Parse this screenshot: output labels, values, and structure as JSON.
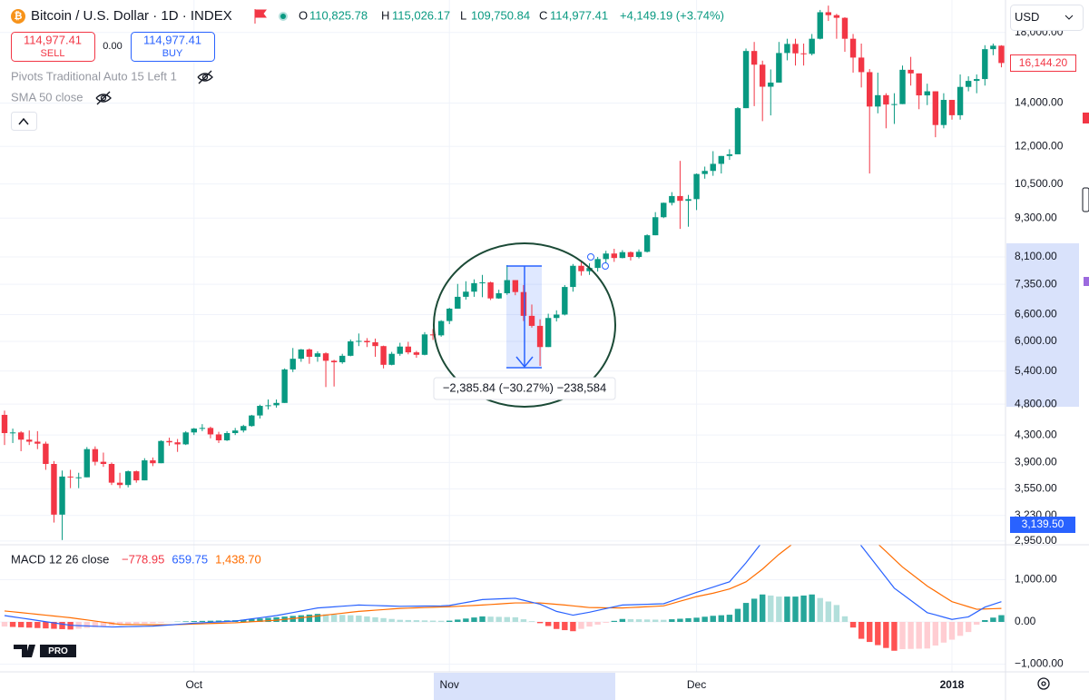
{
  "ui": {
    "symbol": "Bitcoin / U.S. Dollar · 1D · INDEX",
    "ohlc_legend": [
      {
        "label": "O",
        "value": "110,825.78"
      },
      {
        "label": "H",
        "value": "115,026.17"
      },
      {
        "label": "L",
        "value": "109,750.84"
      },
      {
        "label": "C",
        "value": "114,977.41"
      }
    ],
    "change": "+4,149.19 (+3.74%)",
    "sell": {
      "price": "114,977.41",
      "label": "SELL"
    },
    "spread": "0.00",
    "buy": {
      "price": "114,977.41",
      "label": "BUY"
    },
    "indicators": [
      "Pivots Traditional Auto 15 Left 1",
      "SMA 50 close"
    ],
    "currency": "USD",
    "last_price": "16,144.20",
    "crosshair_price": "3,139.50",
    "measure": "−2,385.84 (−30.27%) −238,584",
    "logo": "PRO"
  },
  "chart_data": {
    "type": "candlestick",
    "log_scale": true,
    "grid": true,
    "up_color": "#089981",
    "down_color": "#f23645",
    "xlim": [
      -0.55,
      121.5
    ],
    "xticks": [
      {
        "value": 23,
        "label": "Oct"
      },
      {
        "value": 54,
        "label": "Nov"
      },
      {
        "value": 84,
        "label": "Dec"
      },
      {
        "value": 115,
        "label": "2018"
      }
    ],
    "ylim": [
      2911,
      20200
    ],
    "yticks": [
      {
        "value": 18000,
        "label": "18,000.00"
      },
      {
        "value": 14000,
        "label": "14,000.00"
      },
      {
        "value": 12000,
        "label": "12,000.00"
      },
      {
        "value": 10500,
        "label": "10,500.00"
      },
      {
        "value": 9300,
        "label": "9,300.00"
      },
      {
        "value": 8100,
        "label": "8,100.00"
      },
      {
        "value": 7350,
        "label": "7,350.00"
      },
      {
        "value": 6600,
        "label": "6,600.00"
      },
      {
        "value": 6000,
        "label": "6,000.00"
      },
      {
        "value": 5400,
        "label": "5,400.00"
      },
      {
        "value": 4800,
        "label": "4,800.00"
      },
      {
        "value": 4300,
        "label": "4,300.00"
      },
      {
        "value": 3900,
        "label": "3,900.00"
      },
      {
        "value": 3550,
        "label": "3,550.00"
      },
      {
        "value": 3230,
        "label": "3,230.00"
      },
      {
        "value": 2950,
        "label": "2,950.00"
      }
    ],
    "ohlc": [
      [
        4620,
        4690,
        4150,
        4330
      ],
      [
        4330,
        4400,
        4180,
        4340
      ],
      [
        4340,
        4360,
        4060,
        4230
      ],
      [
        4230,
        4370,
        4150,
        4200
      ],
      [
        4200,
        4360,
        4090,
        4170
      ],
      [
        4170,
        4200,
        3800,
        3880
      ],
      [
        3880,
        3920,
        3150,
        3240
      ],
      [
        3240,
        3790,
        2960,
        3710
      ],
      [
        3710,
        3800,
        3560,
        3700
      ],
      [
        3700,
        3760,
        3560,
        3700
      ],
      [
        3700,
        4120,
        3700,
        4090
      ],
      [
        4090,
        4130,
        3860,
        3910
      ],
      [
        3910,
        4040,
        3840,
        3880
      ],
      [
        3880,
        3900,
        3600,
        3630
      ],
      [
        3630,
        3760,
        3560,
        3600
      ],
      [
        3600,
        3790,
        3570,
        3780
      ],
      [
        3780,
        3790,
        3630,
        3660
      ],
      [
        3660,
        3960,
        3660,
        3930
      ],
      [
        3930,
        3970,
        3850,
        3890
      ],
      [
        3890,
        4220,
        3890,
        4210
      ],
      [
        4210,
        4260,
        4140,
        4190
      ],
      [
        4190,
        4240,
        4050,
        4160
      ],
      [
        4160,
        4360,
        4150,
        4340
      ],
      [
        4340,
        4410,
        4300,
        4400
      ],
      [
        4400,
        4470,
        4360,
        4410
      ],
      [
        4410,
        4430,
        4250,
        4310
      ],
      [
        4310,
        4350,
        4180,
        4220
      ],
      [
        4220,
        4360,
        4210,
        4330
      ],
      [
        4330,
        4410,
        4300,
        4370
      ],
      [
        4370,
        4460,
        4340,
        4440
      ],
      [
        4440,
        4620,
        4430,
        4610
      ],
      [
        4610,
        4790,
        4560,
        4770
      ],
      [
        4770,
        4880,
        4710,
        4780
      ],
      [
        4780,
        4880,
        4740,
        4820
      ],
      [
        4820,
        5450,
        4820,
        5430
      ],
      [
        5430,
        5860,
        5380,
        5640
      ],
      [
        5640,
        5840,
        5580,
        5830
      ],
      [
        5830,
        5850,
        5540,
        5680
      ],
      [
        5680,
        5790,
        5580,
        5750
      ],
      [
        5750,
        5770,
        5100,
        5600
      ],
      [
        5600,
        5620,
        5110,
        5570
      ],
      [
        5570,
        5740,
        5540,
        5700
      ],
      [
        5700,
        6040,
        5690,
        6000
      ],
      [
        6000,
        6170,
        5900,
        6010
      ],
      [
        6010,
        6070,
        5880,
        5980
      ],
      [
        5980,
        6060,
        5680,
        5900
      ],
      [
        5900,
        5910,
        5450,
        5520
      ],
      [
        5520,
        5780,
        5510,
        5740
      ],
      [
        5740,
        5970,
        5700,
        5890
      ],
      [
        5890,
        5990,
        5730,
        5770
      ],
      [
        5770,
        5800,
        5660,
        5720
      ],
      [
        5720,
        6200,
        5710,
        6150
      ],
      [
        6150,
        6270,
        6030,
        6130
      ],
      [
        6130,
        6470,
        6100,
        6450
      ],
      [
        6450,
        6760,
        6380,
        6740
      ],
      [
        6740,
        7360,
        6740,
        7030
      ],
      [
        7030,
        7430,
        6960,
        7160
      ],
      [
        7160,
        7480,
        7030,
        7380
      ],
      [
        7380,
        7600,
        7020,
        7400
      ],
      [
        7400,
        7420,
        6950,
        6990
      ],
      [
        6990,
        7210,
        6980,
        7120
      ],
      [
        7120,
        7870,
        7080,
        7460
      ],
      [
        7460,
        7460,
        7070,
        7150
      ],
      [
        7150,
        7330,
        6450,
        6570
      ],
      [
        6570,
        6840,
        6300,
        6340
      ],
      [
        6340,
        6490,
        5500,
        5880
      ],
      [
        5880,
        6620,
        5880,
        6520
      ],
      [
        6520,
        6700,
        6440,
        6600
      ],
      [
        6600,
        7330,
        6580,
        7280
      ],
      [
        7280,
        7900,
        7160,
        7850
      ],
      [
        7850,
        8000,
        7580,
        7700
      ],
      [
        7700,
        7920,
        7600,
        7790
      ],
      [
        7790,
        8100,
        7690,
        8040
      ],
      [
        8040,
        8280,
        7930,
        8200
      ],
      [
        8200,
        8340,
        7960,
        8070
      ],
      [
        8070,
        8300,
        8060,
        8240
      ],
      [
        8240,
        8260,
        8000,
        8100
      ],
      [
        8100,
        8320,
        8060,
        8250
      ],
      [
        8250,
        8780,
        8230,
        8750
      ],
      [
        8750,
        9500,
        8750,
        9330
      ],
      [
        9330,
        9830,
        9300,
        9820
      ],
      [
        9820,
        10200,
        9730,
        10060
      ],
      [
        10060,
        11400,
        8950,
        9890
      ],
      [
        9890,
        10100,
        9020,
        9950
      ],
      [
        9950,
        10900,
        9570,
        10880
      ],
      [
        10880,
        11170,
        10700,
        11000
      ],
      [
        11000,
        11800,
        10810,
        11280
      ],
      [
        11280,
        11600,
        10900,
        11600
      ],
      [
        11600,
        11880,
        11440,
        11670
      ],
      [
        11670,
        13800,
        11670,
        13750
      ],
      [
        13750,
        17000,
        13750,
        16850
      ],
      [
        16850,
        17400,
        13850,
        16050
      ],
      [
        16050,
        16280,
        13130,
        14840
      ],
      [
        14840,
        15780,
        13400,
        15060
      ],
      [
        15060,
        17400,
        15060,
        16730
      ],
      [
        16730,
        17600,
        16300,
        17280
      ],
      [
        17280,
        17600,
        16000,
        16710
      ],
      [
        16710,
        17300,
        16000,
        16680
      ],
      [
        16680,
        17900,
        16590,
        17600
      ],
      [
        17600,
        19500,
        17560,
        19340
      ],
      [
        19340,
        19800,
        18750,
        19140
      ],
      [
        19140,
        19230,
        17600,
        18960
      ],
      [
        18960,
        19000,
        16800,
        17600
      ],
      [
        17600,
        17900,
        15600,
        16460
      ],
      [
        16460,
        17300,
        14800,
        15630
      ],
      [
        15630,
        15800,
        10900,
        13830
      ],
      [
        13830,
        15600,
        13500,
        14400
      ],
      [
        14400,
        14500,
        12800,
        13930
      ],
      [
        13930,
        14500,
        13000,
        13950
      ],
      [
        13950,
        16000,
        13950,
        15760
      ],
      [
        15760,
        16500,
        14900,
        15560
      ],
      [
        15560,
        15560,
        13700,
        14390
      ],
      [
        14390,
        15000,
        13900,
        14600
      ],
      [
        14600,
        14600,
        12400,
        12950
      ],
      [
        12950,
        14500,
        12800,
        14160
      ],
      [
        14160,
        14160,
        13200,
        13410
      ],
      [
        13410,
        15500,
        13200,
        14830
      ],
      [
        14830,
        15400,
        14600,
        15150
      ],
      [
        15150,
        15500,
        14500,
        15250
      ],
      [
        15250,
        17200,
        14900,
        16960
      ],
      [
        16960,
        17300,
        16600,
        17170
      ],
      [
        17170,
        17200,
        15900,
        16144.2
      ]
    ],
    "indicator": {
      "type": "macd",
      "title": "MACD 12 26 close",
      "legend_values": [
        {
          "value": "−778.95",
          "color": "#f23645"
        },
        {
          "value": "659.75",
          "color": "#2962ff"
        },
        {
          "value": "1,438.70",
          "color": "#ff6d00"
        }
      ],
      "ylim": [
        -1183,
        1828
      ],
      "yticks": [
        {
          "value": 1000,
          "label": "1,000.00"
        },
        {
          "value": 0,
          "label": "0.00"
        },
        {
          "value": -1000,
          "label": "−1,000.00"
        }
      ],
      "macd_color": "#2962ff",
      "signal_color": "#ff6d00",
      "hist_colors": [
        "#26a69a",
        "#b2dfdb",
        "#ff5252",
        "#ffcdd2"
      ],
      "macd": [
        150,
        121,
        93,
        64,
        35,
        6,
        -23,
        -51,
        -80,
        -88,
        -96,
        -104,
        -112,
        -120,
        -116,
        -112,
        -108,
        -104,
        -100,
        -86,
        -72,
        -58,
        -44,
        -30,
        -20,
        -10,
        0,
        10,
        20,
        46,
        72,
        98,
        124,
        150,
        186,
        222,
        258,
        294,
        330,
        344,
        358,
        372,
        386,
        400,
        394,
        388,
        382,
        376,
        370,
        372,
        374,
        376,
        378,
        380,
        390,
        425,
        460,
        495,
        530,
        538,
        545,
        553,
        560,
        513,
        467,
        420,
        335,
        250,
        205,
        160,
        195,
        230,
        273,
        315,
        358,
        400,
        406,
        412,
        418,
        424,
        430,
        498,
        565,
        633,
        700,
        763,
        825,
        888,
        950,
        1175,
        1400,
        1650,
        1900,
        2050,
        2200,
        2350,
        2500,
        2650,
        2800,
        2783,
        2767,
        2750,
        2433,
        2117,
        1800,
        1550,
        1300,
        1050,
        800,
        655,
        510,
        365,
        220,
        167,
        113,
        60,
        90,
        120,
        235,
        350,
        415,
        480
      ],
      "signal": [
        260,
        240,
        220,
        200,
        180,
        160,
        140,
        120,
        100,
        73,
        47,
        20,
        -7,
        -33,
        -60,
        -62,
        -63,
        -65,
        -67,
        -68,
        -70,
        -63,
        -57,
        -50,
        -44,
        -38,
        -32,
        -26,
        -20,
        -8,
        4,
        16,
        28,
        40,
        60,
        80,
        100,
        120,
        140,
        162,
        184,
        206,
        228,
        250,
        264,
        278,
        292,
        306,
        320,
        327,
        333,
        340,
        347,
        353,
        360,
        370,
        380,
        390,
        400,
        413,
        425,
        438,
        450,
        450,
        450,
        450,
        433,
        417,
        400,
        380,
        360,
        340,
        338,
        335,
        333,
        330,
        340,
        350,
        360,
        370,
        380,
        435,
        490,
        545,
        600,
        640,
        680,
        730,
        780,
        865,
        950,
        1100,
        1250,
        1425,
        1600,
        1750,
        1900,
        2025,
        2150,
        2217,
        2283,
        2350,
        2300,
        2250,
        2200,
        2025,
        1850,
        1667,
        1483,
        1300,
        1150,
        1000,
        850,
        727,
        603,
        480,
        420,
        360,
        300,
        307,
        313,
        320
      ],
      "histogram": [
        -110,
        -119,
        -127,
        -136,
        -145,
        -154,
        -163,
        -171,
        -180,
        -161,
        -143,
        -124,
        -105,
        -87,
        -56,
        -50,
        -45,
        -39,
        -33,
        -18,
        -2,
        5,
        13,
        20,
        24,
        28,
        32,
        36,
        40,
        54,
        68,
        82,
        96,
        110,
        126,
        142,
        158,
        174,
        190,
        182,
        174,
        166,
        158,
        150,
        130,
        110,
        90,
        70,
        50,
        45,
        41,
        36,
        31,
        27,
        30,
        55,
        80,
        105,
        130,
        125,
        120,
        115,
        110,
        63,
        17,
        -30,
        -98,
        -167,
        -195,
        -220,
        -165,
        -110,
        -65,
        -20,
        25,
        70,
        66,
        62,
        58,
        54,
        50,
        63,
        75,
        88,
        100,
        123,
        145,
        158,
        170,
        310,
        450,
        550,
        650,
        625,
        600,
        600,
        600,
        625,
        650,
        566,
        484,
        400,
        133,
        -133,
        -400,
        -475,
        -550,
        -617,
        -683,
        -645,
        -640,
        -635,
        -630,
        -560,
        -490,
        -420,
        -330,
        -240,
        -65,
        43,
        102,
        160
      ]
    }
  }
}
